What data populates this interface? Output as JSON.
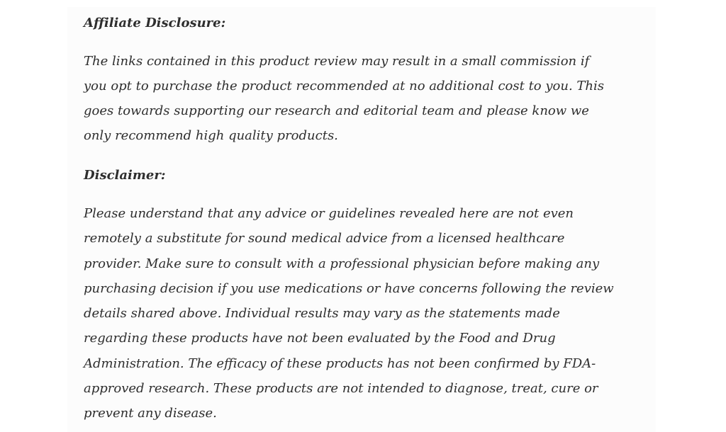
{
  "affiliate": {
    "heading": "Affiliate Disclosure:",
    "lines": [
      "The links contained in this product review may result in a small commission if",
      "you opt to purchase the product recommended at no additional cost to you. This",
      "goes towards supporting our research and editorial team and please know we",
      "only recommend high quality products."
    ]
  },
  "disclaimer": {
    "heading": "Disclaimer:",
    "lines": [
      "Please understand that any advice or guidelines revealed here are not even",
      "remotely a substitute for sound medical advice from a licensed healthcare",
      "provider. Make sure to consult with a professional physician before making any",
      "purchasing decision if you use medications or have concerns following the review",
      "details shared above. Individual results may vary as the statements made",
      "regarding these products have not been evaluated by the Food and Drug",
      "Administration. The efficacy of these products has not been confirmed by FDA-",
      "approved research. These products are not intended to diagnose, treat, cure or",
      "prevent any disease."
    ]
  }
}
